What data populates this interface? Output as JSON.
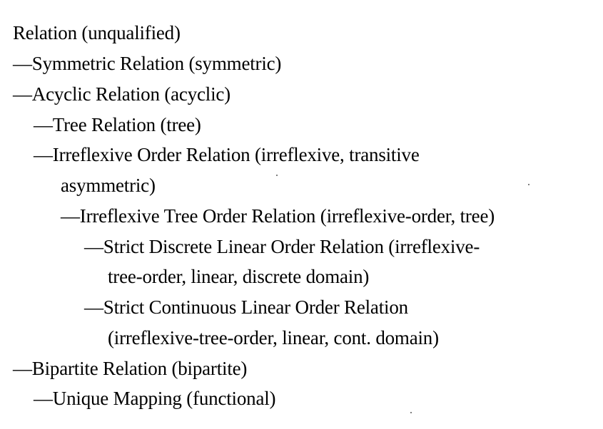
{
  "hierarchy": {
    "lines": [
      "Relation (unqualified)",
      "—Symmetric Relation (symmetric)",
      "—Acyclic Relation (acyclic)",
      "—Tree Relation (tree)",
      "—Irreflexive Order Relation (irreflexive, transitive",
      "asymmetric)",
      "—Irreflexive Tree Order Relation (irreflexive-order, tree)",
      "—Strict Discrete Linear Order Relation (irreflexive-",
      "tree-order, linear, discrete domain)",
      "—Strict Continuous Linear Order Relation",
      "(irreflexive-tree-order, linear, cont. domain)",
      "—Bipartite Relation (bipartite)",
      "—Unique Mapping (functional)"
    ]
  }
}
